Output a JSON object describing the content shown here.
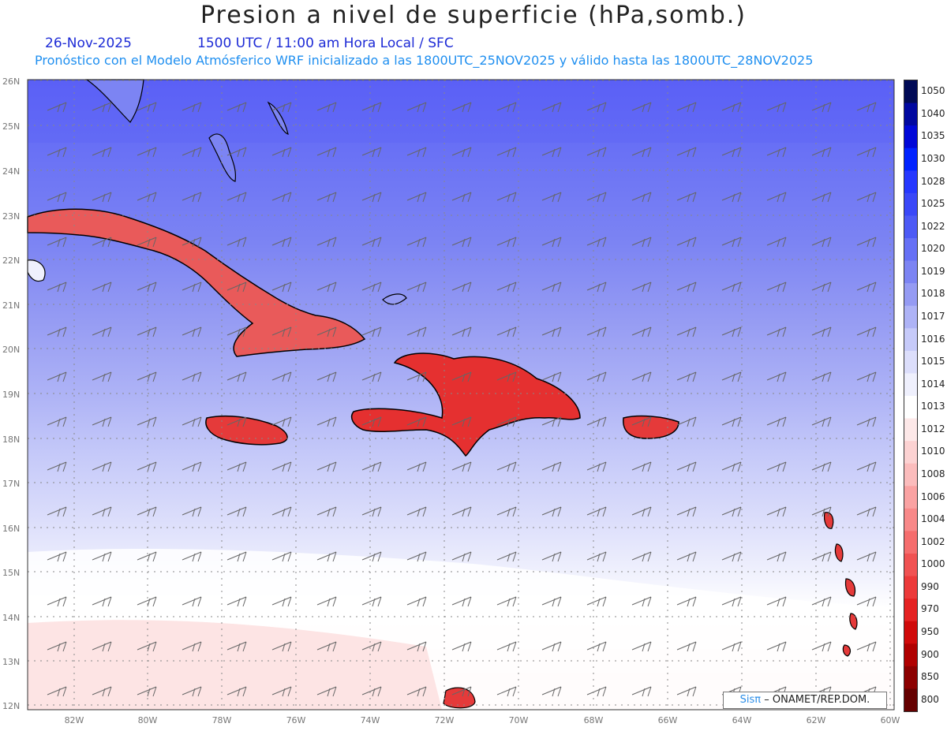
{
  "title": "Presion a nivel de superficie (hPa,somb.)",
  "subtitle": {
    "date": "26-Nov-2025",
    "time": "1500 UTC / 11:00 am Hora Local / SFC",
    "model": "Pronóstico con el Modelo Atmósferico WRF inicializado a las 1800UTC_25NOV2025 y válido hasta las  1800UTC_28NOV2025"
  },
  "lat_labels": [
    "26N",
    "25N",
    "24N",
    "23N",
    "22N",
    "21N",
    "20N",
    "19N",
    "18N",
    "17N",
    "16N",
    "15N",
    "14N",
    "13N",
    "12N"
  ],
  "lon_labels": [
    "82W",
    "80W",
    "78W",
    "76W",
    "74W",
    "72W",
    "70W",
    "68W",
    "66W",
    "64W",
    "62W",
    "60W"
  ],
  "colorbar": {
    "labels": [
      "1050",
      "1040",
      "1035",
      "1030",
      "1028",
      "1025",
      "1022",
      "1020",
      "1019",
      "1018",
      "1017",
      "1016",
      "1015",
      "1014",
      "1013",
      "1012",
      "1010",
      "1008",
      "1006",
      "1004",
      "1002",
      "1000",
      "990",
      "970",
      "950",
      "900",
      "850",
      "800"
    ],
    "colors": [
      "#000a55",
      "#0008a0",
      "#0008d8",
      "#0022ff",
      "#2638ff",
      "#3a48f8",
      "#4d5af5",
      "#6670f5",
      "#7c84f3",
      "#959bf3",
      "#aeb3f6",
      "#c6caf9",
      "#dcdefb",
      "#eff0fd",
      "#ffffff",
      "#fde8e8",
      "#fcd2d2",
      "#fbbcbc",
      "#faa2a2",
      "#f88888",
      "#f56d6d",
      "#f05252",
      "#ec3a3a",
      "#e52222",
      "#d00a0a",
      "#b00000",
      "#8c0000",
      "#650000"
    ]
  },
  "credit": {
    "brand": "Sisπ",
    "org": "– ONAMET/REP.DOM."
  }
}
